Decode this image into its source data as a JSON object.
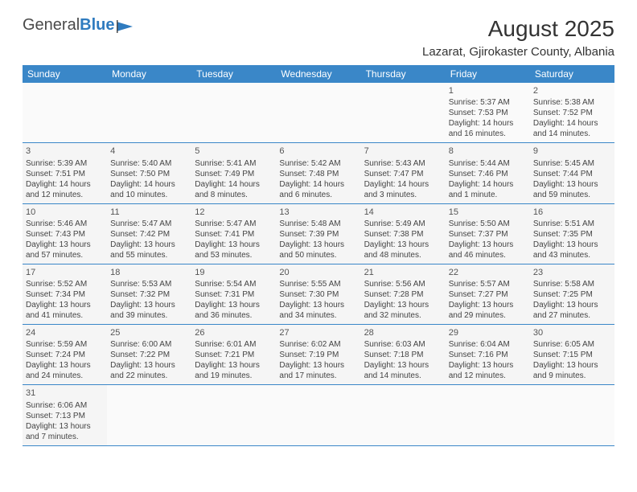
{
  "logo": {
    "text1": "General",
    "text2": "Blue"
  },
  "title": "August 2025",
  "location": "Lazarat, Gjirokaster County, Albania",
  "colors": {
    "header_bg": "#3a87c8",
    "header_text": "#ffffff",
    "border": "#3a87c8",
    "cell_bg": "#f5f5f5",
    "logo_blue": "#2f7bbf"
  },
  "typography": {
    "title_size": 28,
    "location_size": 15,
    "weekday_size": 12,
    "cell_size": 10
  },
  "weekdays": [
    "Sunday",
    "Monday",
    "Tuesday",
    "Wednesday",
    "Thursday",
    "Friday",
    "Saturday"
  ],
  "weeks": [
    [
      null,
      null,
      null,
      null,
      null,
      {
        "d": "1",
        "sr": "Sunrise: 5:37 AM",
        "ss": "Sunset: 7:53 PM",
        "dl1": "Daylight: 14 hours",
        "dl2": "and 16 minutes."
      },
      {
        "d": "2",
        "sr": "Sunrise: 5:38 AM",
        "ss": "Sunset: 7:52 PM",
        "dl1": "Daylight: 14 hours",
        "dl2": "and 14 minutes."
      }
    ],
    [
      {
        "d": "3",
        "sr": "Sunrise: 5:39 AM",
        "ss": "Sunset: 7:51 PM",
        "dl1": "Daylight: 14 hours",
        "dl2": "and 12 minutes."
      },
      {
        "d": "4",
        "sr": "Sunrise: 5:40 AM",
        "ss": "Sunset: 7:50 PM",
        "dl1": "Daylight: 14 hours",
        "dl2": "and 10 minutes."
      },
      {
        "d": "5",
        "sr": "Sunrise: 5:41 AM",
        "ss": "Sunset: 7:49 PM",
        "dl1": "Daylight: 14 hours",
        "dl2": "and 8 minutes."
      },
      {
        "d": "6",
        "sr": "Sunrise: 5:42 AM",
        "ss": "Sunset: 7:48 PM",
        "dl1": "Daylight: 14 hours",
        "dl2": "and 6 minutes."
      },
      {
        "d": "7",
        "sr": "Sunrise: 5:43 AM",
        "ss": "Sunset: 7:47 PM",
        "dl1": "Daylight: 14 hours",
        "dl2": "and 3 minutes."
      },
      {
        "d": "8",
        "sr": "Sunrise: 5:44 AM",
        "ss": "Sunset: 7:46 PM",
        "dl1": "Daylight: 14 hours",
        "dl2": "and 1 minute."
      },
      {
        "d": "9",
        "sr": "Sunrise: 5:45 AM",
        "ss": "Sunset: 7:44 PM",
        "dl1": "Daylight: 13 hours",
        "dl2": "and 59 minutes."
      }
    ],
    [
      {
        "d": "10",
        "sr": "Sunrise: 5:46 AM",
        "ss": "Sunset: 7:43 PM",
        "dl1": "Daylight: 13 hours",
        "dl2": "and 57 minutes."
      },
      {
        "d": "11",
        "sr": "Sunrise: 5:47 AM",
        "ss": "Sunset: 7:42 PM",
        "dl1": "Daylight: 13 hours",
        "dl2": "and 55 minutes."
      },
      {
        "d": "12",
        "sr": "Sunrise: 5:47 AM",
        "ss": "Sunset: 7:41 PM",
        "dl1": "Daylight: 13 hours",
        "dl2": "and 53 minutes."
      },
      {
        "d": "13",
        "sr": "Sunrise: 5:48 AM",
        "ss": "Sunset: 7:39 PM",
        "dl1": "Daylight: 13 hours",
        "dl2": "and 50 minutes."
      },
      {
        "d": "14",
        "sr": "Sunrise: 5:49 AM",
        "ss": "Sunset: 7:38 PM",
        "dl1": "Daylight: 13 hours",
        "dl2": "and 48 minutes."
      },
      {
        "d": "15",
        "sr": "Sunrise: 5:50 AM",
        "ss": "Sunset: 7:37 PM",
        "dl1": "Daylight: 13 hours",
        "dl2": "and 46 minutes."
      },
      {
        "d": "16",
        "sr": "Sunrise: 5:51 AM",
        "ss": "Sunset: 7:35 PM",
        "dl1": "Daylight: 13 hours",
        "dl2": "and 43 minutes."
      }
    ],
    [
      {
        "d": "17",
        "sr": "Sunrise: 5:52 AM",
        "ss": "Sunset: 7:34 PM",
        "dl1": "Daylight: 13 hours",
        "dl2": "and 41 minutes."
      },
      {
        "d": "18",
        "sr": "Sunrise: 5:53 AM",
        "ss": "Sunset: 7:32 PM",
        "dl1": "Daylight: 13 hours",
        "dl2": "and 39 minutes."
      },
      {
        "d": "19",
        "sr": "Sunrise: 5:54 AM",
        "ss": "Sunset: 7:31 PM",
        "dl1": "Daylight: 13 hours",
        "dl2": "and 36 minutes."
      },
      {
        "d": "20",
        "sr": "Sunrise: 5:55 AM",
        "ss": "Sunset: 7:30 PM",
        "dl1": "Daylight: 13 hours",
        "dl2": "and 34 minutes."
      },
      {
        "d": "21",
        "sr": "Sunrise: 5:56 AM",
        "ss": "Sunset: 7:28 PM",
        "dl1": "Daylight: 13 hours",
        "dl2": "and 32 minutes."
      },
      {
        "d": "22",
        "sr": "Sunrise: 5:57 AM",
        "ss": "Sunset: 7:27 PM",
        "dl1": "Daylight: 13 hours",
        "dl2": "and 29 minutes."
      },
      {
        "d": "23",
        "sr": "Sunrise: 5:58 AM",
        "ss": "Sunset: 7:25 PM",
        "dl1": "Daylight: 13 hours",
        "dl2": "and 27 minutes."
      }
    ],
    [
      {
        "d": "24",
        "sr": "Sunrise: 5:59 AM",
        "ss": "Sunset: 7:24 PM",
        "dl1": "Daylight: 13 hours",
        "dl2": "and 24 minutes."
      },
      {
        "d": "25",
        "sr": "Sunrise: 6:00 AM",
        "ss": "Sunset: 7:22 PM",
        "dl1": "Daylight: 13 hours",
        "dl2": "and 22 minutes."
      },
      {
        "d": "26",
        "sr": "Sunrise: 6:01 AM",
        "ss": "Sunset: 7:21 PM",
        "dl1": "Daylight: 13 hours",
        "dl2": "and 19 minutes."
      },
      {
        "d": "27",
        "sr": "Sunrise: 6:02 AM",
        "ss": "Sunset: 7:19 PM",
        "dl1": "Daylight: 13 hours",
        "dl2": "and 17 minutes."
      },
      {
        "d": "28",
        "sr": "Sunrise: 6:03 AM",
        "ss": "Sunset: 7:18 PM",
        "dl1": "Daylight: 13 hours",
        "dl2": "and 14 minutes."
      },
      {
        "d": "29",
        "sr": "Sunrise: 6:04 AM",
        "ss": "Sunset: 7:16 PM",
        "dl1": "Daylight: 13 hours",
        "dl2": "and 12 minutes."
      },
      {
        "d": "30",
        "sr": "Sunrise: 6:05 AM",
        "ss": "Sunset: 7:15 PM",
        "dl1": "Daylight: 13 hours",
        "dl2": "and 9 minutes."
      }
    ],
    [
      {
        "d": "31",
        "sr": "Sunrise: 6:06 AM",
        "ss": "Sunset: 7:13 PM",
        "dl1": "Daylight: 13 hours",
        "dl2": "and 7 minutes."
      },
      null,
      null,
      null,
      null,
      null,
      null
    ]
  ]
}
